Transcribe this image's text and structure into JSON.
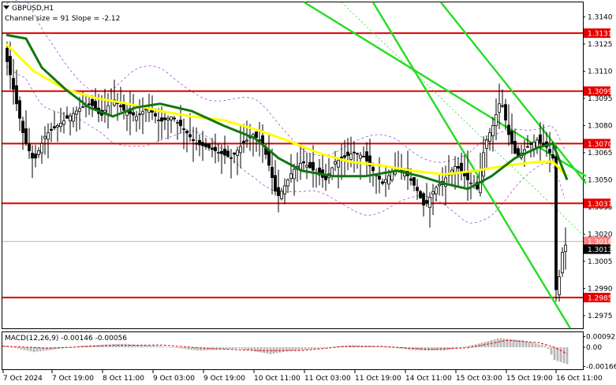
{
  "header": {
    "symbol_line": "GBPUSD,H1",
    "channel_line": "Channel size = 91 Slope = -2.12"
  },
  "colors": {
    "background": "#ffffff",
    "candle": "#000000",
    "level_line": "#dd0000",
    "level_label_bg": "#e60000",
    "channel": "#22dd22",
    "ma_yellow": "#ffff00",
    "ma_green": "#117711",
    "envelope": "#a050d0",
    "price_label_bg": "#000000",
    "macd_hist": "#b8b8b8",
    "macd_signal": "#dd0000"
  },
  "price_axis": {
    "ticks": [
      "1.3140",
      "1.3125",
      "1.3110",
      "1.3095",
      "1.3080",
      "1.3065",
      "1.3050",
      "1.3035",
      "1.3020",
      "1.3005",
      "1.2990",
      "1.2975"
    ]
  },
  "levels": [
    {
      "label": "1.3131",
      "value": 1.3131
    },
    {
      "label": "1.3099",
      "value": 1.3099
    },
    {
      "label": "1.3070",
      "value": 1.307
    },
    {
      "label": "1.3037",
      "value": 1.3037
    },
    {
      "label": "1.2985",
      "value": 1.2985
    }
  ],
  "price_labels": {
    "faint_level": "1.3016",
    "current_price": "1.3013"
  },
  "macd": {
    "label": "MACD(12,26,9) -0.00146 -0.00056",
    "ticks": [
      "0.00092",
      "0.00",
      "-0.00166"
    ]
  },
  "time_axis": {
    "labels": [
      "7 Oct 2024",
      "7 Oct 19:00",
      "8 Oct 11:00",
      "9 Oct 03:00",
      "9 Oct 19:00",
      "10 Oct 11:00",
      "11 Oct 03:00",
      "11 Oct 19:00",
      "14 Oct 11:00",
      "15 Oct 03:00",
      "15 Oct 19:00",
      "16 Oct 11:00"
    ]
  },
  "chart_data": {
    "type": "candlestick",
    "symbol": "GBPUSD",
    "timeframe": "H1",
    "ylim": [
      1.2968,
      1.3148
    ],
    "horizontal_levels": [
      1.3131,
      1.3099,
      1.307,
      1.3037,
      1.2985
    ],
    "last_price": 1.3013,
    "close_path": [
      [
        0,
        1.3125
      ],
      [
        8,
        1.3112
      ],
      [
        18,
        1.3092
      ],
      [
        28,
        1.3072
      ],
      [
        40,
        1.306
      ],
      [
        55,
        1.3075
      ],
      [
        70,
        1.308
      ],
      [
        85,
        1.3085
      ],
      [
        100,
        1.309
      ],
      [
        112,
        1.3092
      ],
      [
        125,
        1.3085
      ],
      [
        140,
        1.3095
      ],
      [
        155,
        1.3088
      ],
      [
        170,
        1.3085
      ],
      [
        185,
        1.309
      ],
      [
        200,
        1.3082
      ],
      [
        215,
        1.3085
      ],
      [
        230,
        1.3078
      ],
      [
        245,
        1.307
      ],
      [
        260,
        1.3068
      ],
      [
        275,
        1.3065
      ],
      [
        290,
        1.3062
      ],
      [
        305,
        1.307
      ],
      [
        318,
        1.3075
      ],
      [
        330,
        1.307
      ],
      [
        340,
        1.3055
      ],
      [
        348,
        1.304
      ],
      [
        356,
        1.3045
      ],
      [
        368,
        1.3055
      ],
      [
        380,
        1.306
      ],
      [
        395,
        1.3055
      ],
      [
        410,
        1.305
      ],
      [
        422,
        1.306
      ],
      [
        432,
        1.3062
      ],
      [
        445,
        1.3065
      ],
      [
        458,
        1.3063
      ],
      [
        470,
        1.3055
      ],
      [
        482,
        1.3048
      ],
      [
        495,
        1.3055
      ],
      [
        510,
        1.3055
      ],
      [
        525,
        1.3045
      ],
      [
        535,
        1.3035
      ],
      [
        548,
        1.3045
      ],
      [
        560,
        1.305
      ],
      [
        575,
        1.3058
      ],
      [
        590,
        1.305
      ],
      [
        602,
        1.3045
      ],
      [
        612,
        1.307
      ],
      [
        622,
        1.308
      ],
      [
        632,
        1.3095
      ],
      [
        642,
        1.3075
      ],
      [
        652,
        1.3062
      ],
      [
        665,
        1.3068
      ],
      [
        678,
        1.3072
      ],
      [
        690,
        1.3068
      ],
      [
        698,
        1.3062
      ],
      [
        701,
        1.299
      ],
      [
        704,
        1.2988
      ],
      [
        708,
        1.3005
      ],
      [
        712,
        1.3015
      ],
      [
        716,
        1.3013
      ]
    ],
    "ma_yellow": [
      [
        5,
        1.3125
      ],
      [
        40,
        1.311
      ],
      [
        80,
        1.31
      ],
      [
        120,
        1.3095
      ],
      [
        160,
        1.3092
      ],
      [
        200,
        1.3088
      ],
      [
        240,
        1.3085
      ],
      [
        280,
        1.3083
      ],
      [
        320,
        1.3078
      ],
      [
        360,
        1.3072
      ],
      [
        400,
        1.3065
      ],
      [
        440,
        1.306
      ],
      [
        480,
        1.3058
      ],
      [
        520,
        1.3055
      ],
      [
        560,
        1.3053
      ],
      [
        600,
        1.3055
      ],
      [
        640,
        1.3058
      ],
      [
        680,
        1.306
      ],
      [
        698,
        1.306
      ],
      [
        716,
        1.3052
      ]
    ],
    "ma_green": [
      [
        5,
        1.313
      ],
      [
        30,
        1.3128
      ],
      [
        50,
        1.3112
      ],
      [
        80,
        1.31
      ],
      [
        110,
        1.309
      ],
      [
        140,
        1.3085
      ],
      [
        170,
        1.309
      ],
      [
        200,
        1.3092
      ],
      [
        240,
        1.3088
      ],
      [
        280,
        1.308
      ],
      [
        320,
        1.3073
      ],
      [
        350,
        1.3062
      ],
      [
        380,
        1.3055
      ],
      [
        420,
        1.3052
      ],
      [
        460,
        1.3052
      ],
      [
        500,
        1.3055
      ],
      [
        530,
        1.3052
      ],
      [
        560,
        1.3048
      ],
      [
        590,
        1.3045
      ],
      [
        620,
        1.3052
      ],
      [
        650,
        1.3062
      ],
      [
        680,
        1.3068
      ],
      [
        698,
        1.307
      ],
      [
        716,
        1.305
      ]
    ],
    "channel_lines": [
      [
        [
          383,
          1.3148
        ],
        [
          740,
          1.3052
        ]
      ],
      [
        [
          556,
          1.3148
        ],
        [
          740,
          1.3048
        ]
      ],
      [
        [
          430,
          1.3148
        ],
        [
          740,
          1.3018
        ]
      ],
      [
        [
          470,
          1.3148
        ],
        [
          720,
          1.2968
        ]
      ]
    ],
    "macd_hist_path": [
      [
        0,
        0.00018
      ],
      [
        40,
        -0.00042
      ],
      [
        100,
        0.00012
      ],
      [
        150,
        0.0003
      ],
      [
        200,
        0.0001
      ],
      [
        250,
        -0.0003
      ],
      [
        300,
        -0.0001
      ],
      [
        340,
        -0.0006
      ],
      [
        360,
        -0.00035
      ],
      [
        400,
        -0.0001
      ],
      [
        440,
        0.0002
      ],
      [
        480,
        0.0001
      ],
      [
        520,
        -0.00025
      ],
      [
        560,
        -0.0003
      ],
      [
        600,
        0.00025
      ],
      [
        630,
        0.0008
      ],
      [
        660,
        0.0006
      ],
      [
        690,
        0.0001
      ],
      [
        700,
        -0.0011
      ],
      [
        716,
        -0.00146
      ]
    ],
    "macd_signal_path": [
      [
        0,
        0.0001
      ],
      [
        60,
        -8e-05
      ],
      [
        130,
        0.00015
      ],
      [
        200,
        0.0002
      ],
      [
        260,
        -0.0001
      ],
      [
        330,
        -0.0003
      ],
      [
        380,
        -0.00028
      ],
      [
        430,
        5e-05
      ],
      [
        480,
        8e-05
      ],
      [
        540,
        -0.00018
      ],
      [
        590,
        -5e-05
      ],
      [
        640,
        0.0006
      ],
      [
        680,
        0.0004
      ],
      [
        700,
        0.0
      ],
      [
        716,
        -0.00056
      ]
    ]
  }
}
